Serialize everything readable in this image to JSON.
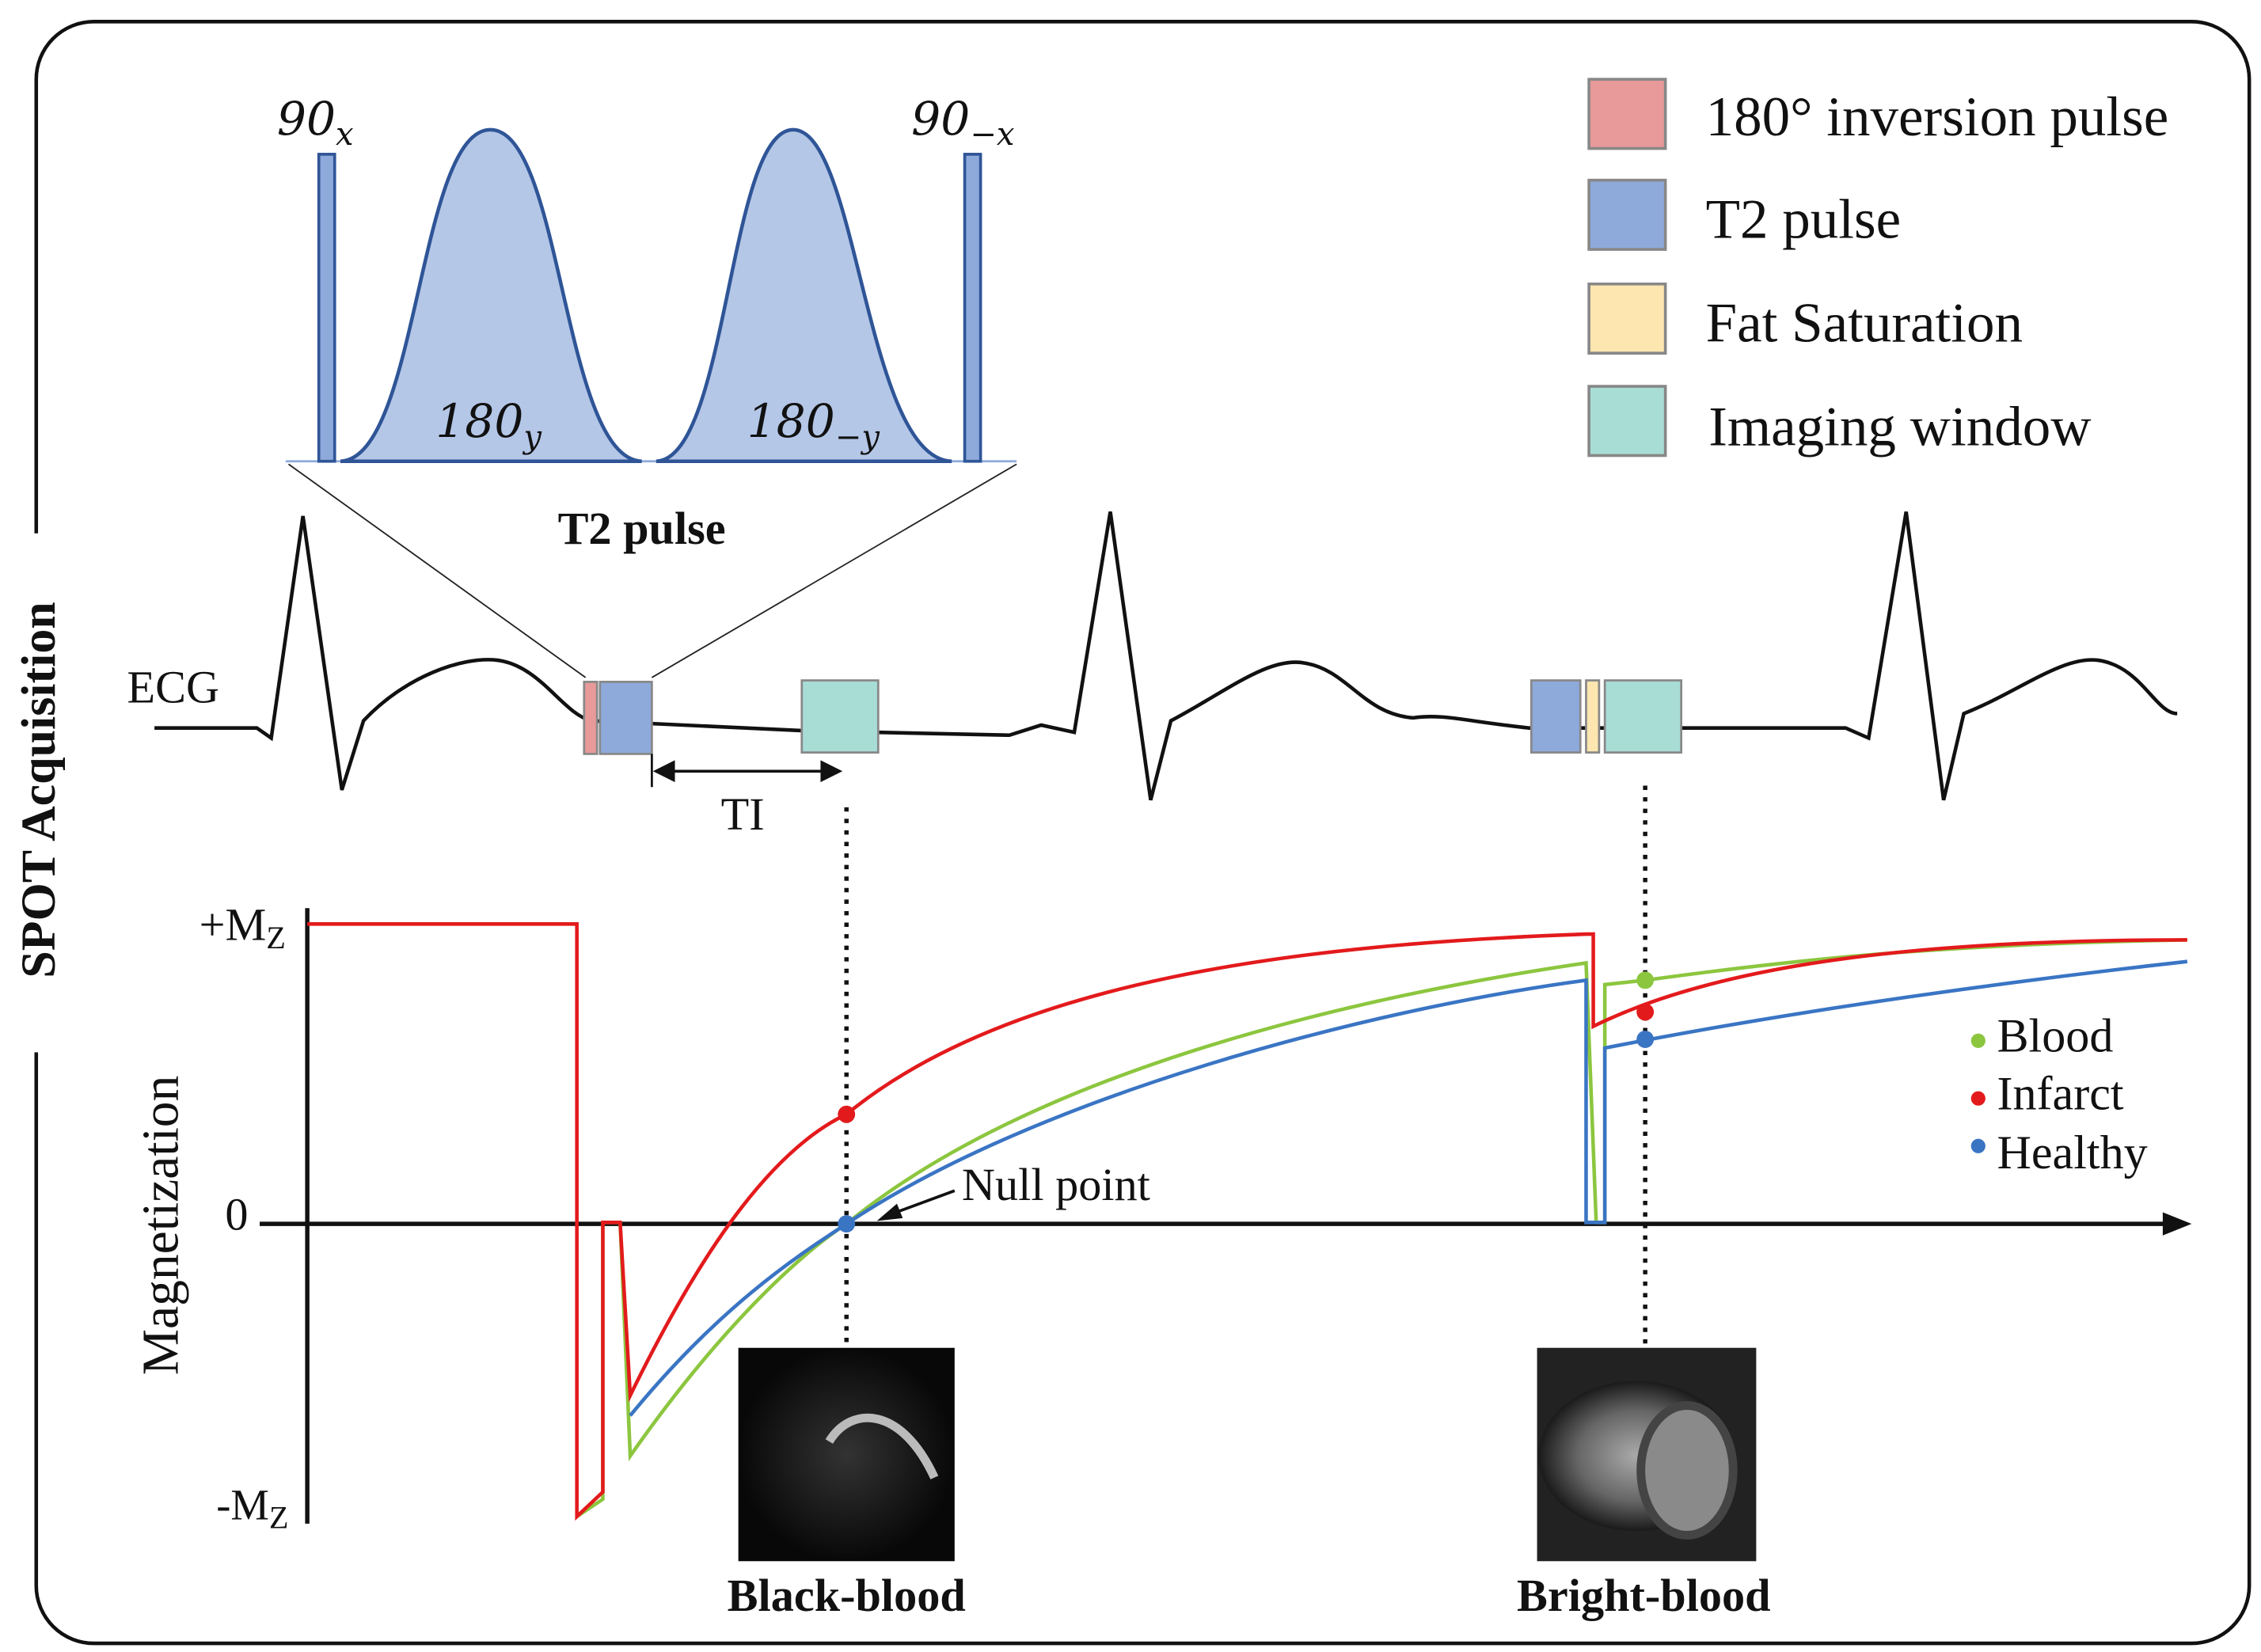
{
  "title": "SPOT Acquisition",
  "t2_pulse": {
    "label": "T2 pulse",
    "pulses": [
      {
        "base": "90",
        "sub": "x"
      },
      {
        "base": "90",
        "sub": "−x"
      },
      {
        "base": "180",
        "sub": "y"
      },
      {
        "base": "180",
        "sub": "−y"
      }
    ]
  },
  "legend": [
    {
      "label": "180° inversion pulse",
      "color": "#e8999a"
    },
    {
      "label": "T2 pulse",
      "color": "#8eaadb"
    },
    {
      "label": "Fat Saturation",
      "color": "#fde6b0"
    },
    {
      "label": "Imaging window",
      "color": "#a8ddd6"
    }
  ],
  "ecg_label": "ECG",
  "ti_label": "TI",
  "axis": {
    "y_label": "Magnetization",
    "ticks": [
      {
        "base": "+M",
        "sub": "Z"
      },
      {
        "base": "0"
      },
      {
        "base": "-M",
        "sub": "Z"
      }
    ]
  },
  "curve_legend": [
    {
      "label": "Blood",
      "color": "#8cc63f"
    },
    {
      "label": "Infarct",
      "color": "#e31a1c"
    },
    {
      "label": "Healthy",
      "color": "#3a75c4"
    }
  ],
  "annotation": "Null point",
  "images": [
    {
      "label": "Black-blood"
    },
    {
      "label": "Bright-blood"
    }
  ]
}
